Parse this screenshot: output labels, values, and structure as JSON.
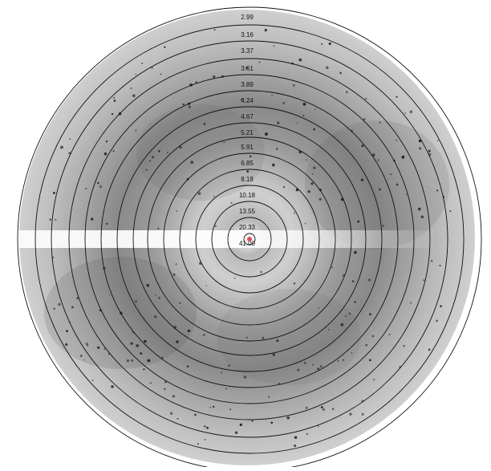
{
  "diffraction_image": {
    "resolution_rings": [
      "2.99",
      "3.16",
      "3.37",
      "3.61",
      "3.89",
      "4.24",
      "4.67",
      "5.21",
      "5.91",
      "6.85",
      "8.18",
      "10.18",
      "13.55",
      "20.33",
      "41.00"
    ],
    "colors": {
      "background": "#ffffff",
      "detector_light": "#d6d6d6",
      "detector_dark": "#7e7e7e",
      "ring_line": "#111111",
      "beam_center": "#e05050",
      "spot": "#1a1a1a"
    }
  }
}
